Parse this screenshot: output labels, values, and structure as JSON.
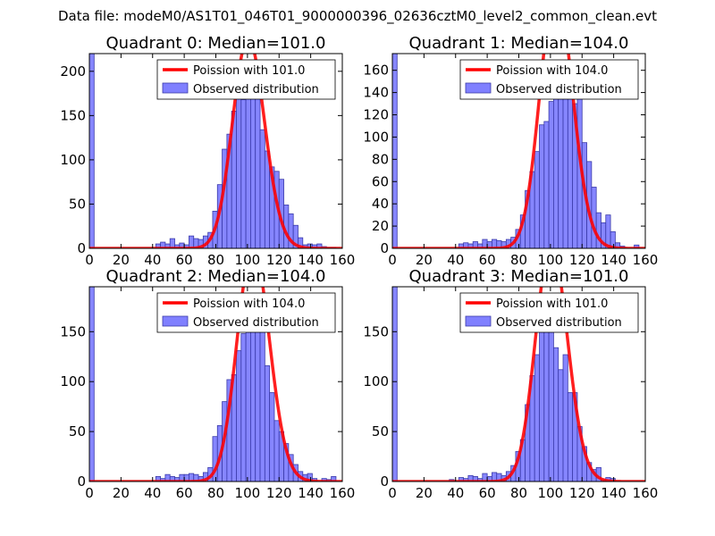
{
  "figure": {
    "title": "Data file: modeM0/AS1T01_046T01_9000000396_02636cztM0_level2_common_clean.evt"
  },
  "colors": {
    "bar_fill": "#8080ff",
    "bar_edge": "#3a3aa8",
    "poisson_line": "#ff0000",
    "axes": "#000000"
  },
  "chart_data": [
    {
      "type": "bar",
      "title": "Quadrant 0: Median=101.0",
      "xlim": [
        0,
        160
      ],
      "ylim": [
        0,
        220
      ],
      "xticks": [
        0,
        20,
        40,
        60,
        80,
        100,
        120,
        140,
        160
      ],
      "yticks": [
        0,
        50,
        100,
        150,
        200
      ],
      "bin_width": 3,
      "legend": {
        "line_label": "Poission with 101.0",
        "bar_label": "Observed distribution",
        "loc": "upper right"
      },
      "series": [
        {
          "name": "Observed distribution",
          "type": "histogram",
          "bins": [
            0,
            3,
            6,
            9,
            12,
            15,
            18,
            21,
            24,
            27,
            30,
            33,
            36,
            39,
            42,
            45,
            48,
            51,
            54,
            57,
            60,
            63,
            66,
            69,
            72,
            75,
            78,
            81,
            84,
            87,
            90,
            93,
            96,
            99,
            102,
            105,
            108,
            111,
            114,
            117,
            120,
            123,
            126,
            129,
            132,
            135,
            138,
            141,
            144,
            147,
            150,
            153,
            156
          ],
          "values": [
            220,
            0,
            0,
            0,
            0,
            0,
            0,
            0,
            0,
            0,
            0,
            0,
            0,
            0,
            5,
            7,
            5,
            11,
            4,
            6,
            4,
            14,
            11,
            10,
            14,
            18,
            42,
            72,
            112,
            129,
            155,
            193,
            168,
            198,
            194,
            169,
            134,
            110,
            92,
            87,
            78,
            49,
            39,
            26,
            12,
            4,
            5,
            4,
            5,
            2,
            1,
            1,
            0
          ]
        },
        {
          "name": "Poission with 101.0",
          "type": "poisson",
          "mean": 101.0,
          "total": 2000,
          "bin_width": 3
        }
      ]
    },
    {
      "type": "bar",
      "title": "Quadrant 1: Median=104.0",
      "xlim": [
        0,
        160
      ],
      "ylim": [
        0,
        175
      ],
      "xticks": [
        0,
        20,
        40,
        60,
        80,
        100,
        120,
        140,
        160
      ],
      "yticks": [
        0,
        20,
        40,
        60,
        80,
        100,
        120,
        140,
        160
      ],
      "bin_width": 3,
      "legend": {
        "line_label": "Poission with 104.0",
        "bar_label": "Observed distribution",
        "loc": "upper right"
      },
      "series": [
        {
          "name": "Observed distribution",
          "type": "histogram",
          "bins": [
            0,
            3,
            6,
            9,
            12,
            15,
            18,
            21,
            24,
            27,
            30,
            33,
            36,
            39,
            42,
            45,
            48,
            51,
            54,
            57,
            60,
            63,
            66,
            69,
            72,
            75,
            78,
            81,
            84,
            87,
            90,
            93,
            96,
            99,
            102,
            105,
            108,
            111,
            114,
            117,
            120,
            123,
            126,
            129,
            132,
            135,
            138,
            141,
            144,
            147,
            150,
            153,
            156
          ],
          "values": [
            175,
            0,
            0,
            0,
            0,
            0,
            0,
            0,
            0,
            0,
            0,
            0,
            0,
            0,
            4,
            5,
            4,
            6,
            4,
            8,
            6,
            8,
            7,
            6,
            8,
            10,
            17,
            30,
            52,
            69,
            87,
            111,
            114,
            132,
            161,
            151,
            148,
            135,
            130,
            153,
            95,
            78,
            55,
            32,
            23,
            30,
            15,
            5,
            2,
            0,
            0,
            3,
            0
          ]
        },
        {
          "name": "Poission with 104.0",
          "type": "poisson",
          "mean": 104.0,
          "total": 2000,
          "bin_width": 3
        }
      ]
    },
    {
      "type": "bar",
      "title": "Quadrant 2: Median=104.0",
      "xlim": [
        0,
        160
      ],
      "ylim": [
        0,
        195
      ],
      "xticks": [
        0,
        20,
        40,
        60,
        80,
        100,
        120,
        140,
        160
      ],
      "yticks": [
        0,
        50,
        100,
        150
      ],
      "bin_width": 3,
      "legend": {
        "line_label": "Poission with 104.0",
        "bar_label": "Observed distribution",
        "loc": "upper right"
      },
      "series": [
        {
          "name": "Observed distribution",
          "type": "histogram",
          "bins": [
            0,
            3,
            6,
            9,
            12,
            15,
            18,
            21,
            24,
            27,
            30,
            33,
            36,
            39,
            42,
            45,
            48,
            51,
            54,
            57,
            60,
            63,
            66,
            69,
            72,
            75,
            78,
            81,
            84,
            87,
            90,
            93,
            96,
            99,
            102,
            105,
            108,
            111,
            114,
            117,
            120,
            123,
            126,
            129,
            132,
            135,
            138,
            141,
            144,
            147,
            150,
            153,
            156
          ],
          "values": [
            195,
            0,
            0,
            0,
            0,
            0,
            0,
            0,
            0,
            0,
            0,
            0,
            0,
            0,
            5,
            3,
            7,
            5,
            4,
            7,
            7,
            8,
            7,
            5,
            9,
            14,
            45,
            56,
            80,
            102,
            107,
            131,
            148,
            159,
            172,
            166,
            151,
            116,
            89,
            61,
            50,
            38,
            27,
            17,
            10,
            7,
            8,
            3,
            0,
            3,
            2,
            5,
            0
          ]
        },
        {
          "name": "Poission with 104.0",
          "type": "poisson",
          "mean": 104.0,
          "total": 2000,
          "bin_width": 3
        }
      ]
    },
    {
      "type": "bar",
      "title": "Quadrant 3: Median=101.0",
      "xlim": [
        0,
        160
      ],
      "ylim": [
        0,
        195
      ],
      "xticks": [
        0,
        20,
        40,
        60,
        80,
        100,
        120,
        140,
        160
      ],
      "yticks": [
        0,
        50,
        100,
        150
      ],
      "bin_width": 3,
      "legend": {
        "line_label": "Poission with 101.0",
        "bar_label": "Observed distribution",
        "loc": "upper right"
      },
      "series": [
        {
          "name": "Observed distribution",
          "type": "histogram",
          "bins": [
            0,
            3,
            6,
            9,
            12,
            15,
            18,
            21,
            24,
            27,
            30,
            33,
            36,
            39,
            42,
            45,
            48,
            51,
            54,
            57,
            60,
            63,
            66,
            69,
            72,
            75,
            78,
            81,
            84,
            87,
            90,
            93,
            96,
            99,
            102,
            105,
            108,
            111,
            114,
            117,
            120,
            123,
            126,
            129,
            132,
            135,
            138,
            141,
            144,
            147,
            150,
            153,
            156
          ],
          "values": [
            195,
            0,
            0,
            0,
            0,
            0,
            0,
            0,
            0,
            0,
            0,
            0,
            2,
            0,
            4,
            3,
            6,
            5,
            3,
            8,
            5,
            9,
            8,
            6,
            10,
            16,
            30,
            42,
            77,
            106,
            127,
            161,
            188,
            164,
            134,
            112,
            127,
            89,
            89,
            55,
            35,
            19,
            12,
            14,
            2,
            4,
            3,
            0,
            0,
            0,
            0,
            0,
            0
          ]
        },
        {
          "name": "Poission with 101.0",
          "type": "poisson",
          "mean": 101.0,
          "total": 2000,
          "bin_width": 3
        }
      ]
    }
  ]
}
